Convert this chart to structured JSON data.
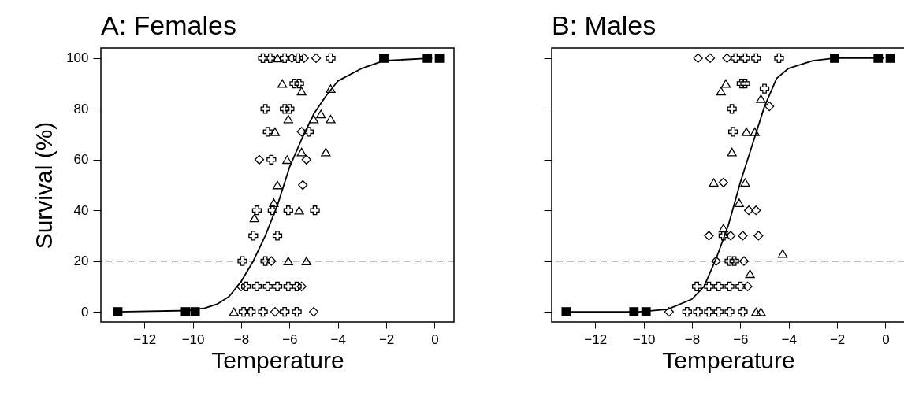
{
  "chart_data": [
    {
      "type": "scatter",
      "title": "A: Females",
      "xlabel": "Temperature",
      "ylabel": "Survival (%)",
      "xlim": [
        -13.8,
        0.8
      ],
      "ylim": [
        -4,
        104
      ],
      "xticks": [
        -12,
        -10,
        -8,
        -6,
        -4,
        -2,
        0
      ],
      "yticks": [
        0,
        20,
        40,
        60,
        80,
        100
      ],
      "grid": false,
      "ref_lines": [
        {
          "axis": "y",
          "value": 20,
          "line_style": "dashed",
          "color": "#000000"
        }
      ],
      "series": [
        {
          "type": "scatter",
          "marker": "square",
          "color": "#000000",
          "x": [
            -13.1,
            -10.3,
            -9.9,
            -2.1,
            -0.3,
            0.2
          ],
          "values": [
            0,
            0,
            0,
            100,
            100,
            100
          ]
        },
        {
          "type": "scatter",
          "marker": "cross",
          "color": "#000000",
          "x": [
            -7.1,
            -6.8,
            -6.2,
            -5.65,
            -4.3,
            -5.8,
            -5.6,
            -7.0,
            -6.2,
            -6.0,
            -6.9,
            -5.2,
            -6.75,
            -7.35,
            -6.7,
            -6.05,
            -4.95,
            -7.5,
            -6.5,
            -7.95,
            -7.0,
            -7.8,
            -7.35,
            -6.9,
            -6.5,
            -6.05,
            -5.7,
            -7.9,
            -7.6,
            -7.1,
            -6.2,
            -5.7
          ],
          "values": [
            100,
            100,
            100,
            100,
            100,
            90,
            90,
            80,
            80,
            80,
            71,
            71,
            60,
            40,
            40,
            40,
            40,
            30,
            30,
            20,
            20,
            10,
            10,
            10,
            10,
            10,
            10,
            0,
            0,
            0,
            0,
            0
          ]
        },
        {
          "type": "scatter",
          "marker": "diamond",
          "color": "#000000",
          "x": [
            -5.9,
            -5.4,
            -4.9,
            -5.5,
            -7.25,
            -5.3,
            -5.45,
            -6.75,
            -8.0,
            -5.5,
            -6.6,
            -5.0
          ],
          "values": [
            100,
            100,
            100,
            71,
            60,
            60,
            50,
            20,
            10,
            10,
            0,
            0
          ]
        },
        {
          "type": "scatter",
          "marker": "triangle",
          "color": "#000000",
          "x": [
            -6.5,
            -6.3,
            -5.5,
            -4.3,
            -4.7,
            -6.05,
            -5.0,
            -4.3,
            -6.6,
            -4.5,
            -5.5,
            -6.1,
            -6.5,
            -6.65,
            -5.6,
            -7.45,
            -6.05,
            -5.3,
            -8.3
          ],
          "values": [
            100,
            90,
            87,
            88,
            78,
            76,
            76,
            76,
            71,
            63,
            63,
            60,
            50,
            43,
            40,
            37,
            20,
            20,
            0
          ]
        },
        {
          "type": "line",
          "color": "#000000",
          "line_style": "solid",
          "x": [
            -13.1,
            -10.2,
            -9.5,
            -9,
            -8.5,
            -8,
            -7.5,
            -7,
            -6.5,
            -6,
            -5.5,
            -5,
            -4.5,
            -4,
            -3,
            -2.1,
            -0.1
          ],
          "values": [
            0,
            0.5,
            1.5,
            3,
            6,
            12,
            20,
            30,
            42,
            57,
            68,
            78,
            85,
            91,
            96,
            99,
            100
          ]
        }
      ]
    },
    {
      "type": "scatter",
      "title": "B: Males",
      "xlabel": "Temperature",
      "xlim": [
        -13.8,
        0.8
      ],
      "ylim": [
        -4,
        104
      ],
      "xticks": [
        -12,
        -10,
        -8,
        -6,
        -4,
        -2,
        0
      ],
      "yticks": [
        0,
        20,
        40,
        60,
        80,
        100
      ],
      "tick_labels": "x",
      "grid": false,
      "ref_lines": [
        {
          "axis": "y",
          "value": 20,
          "line_style": "dashed",
          "color": "#000000"
        }
      ],
      "series": [
        {
          "type": "scatter",
          "marker": "square",
          "color": "#000000",
          "x": [
            -13.2,
            -10.4,
            -9.9,
            -2.1,
            -0.3,
            0.2
          ],
          "values": [
            0,
            0,
            0,
            100,
            100,
            100
          ]
        },
        {
          "type": "scatter",
          "marker": "cross",
          "color": "#000000",
          "x": [
            -6.2,
            -5.8,
            -5.35,
            -4.4,
            -5.95,
            -5.8,
            -5.0,
            -6.35,
            -6.3,
            -6.7,
            -6.45,
            -6.25,
            -7.8,
            -7.3,
            -6.9,
            -6.45,
            -6.0,
            -8.2,
            -7.75,
            -7.3,
            -6.9,
            -6.45,
            -5.9
          ],
          "values": [
            100,
            100,
            100,
            100,
            90,
            90,
            88,
            80,
            71,
            30,
            20,
            20,
            10,
            10,
            10,
            10,
            10,
            0,
            0,
            0,
            0,
            0,
            0
          ]
        },
        {
          "type": "scatter",
          "marker": "diamond",
          "color": "#000000",
          "x": [
            -7.75,
            -7.25,
            -6.55,
            -4.8,
            -6.7,
            -5.65,
            -5.35,
            -7.3,
            -6.4,
            -5.9,
            -5.25,
            -7.0,
            -5.85,
            -5.7,
            -8.95
          ],
          "values": [
            100,
            100,
            100,
            81,
            51,
            40,
            40,
            30,
            30,
            30,
            30,
            20,
            20,
            10,
            0
          ]
        },
        {
          "type": "scatter",
          "marker": "triangle",
          "color": "#000000",
          "x": [
            -6.6,
            -6.8,
            -5.15,
            -5.75,
            -5.4,
            -6.35,
            -7.1,
            -5.8,
            -6.05,
            -6.7,
            -4.25,
            -5.6,
            -5.35,
            -5.15
          ],
          "values": [
            90,
            87,
            84,
            71,
            71,
            63,
            51,
            51,
            43,
            33,
            23,
            15,
            0,
            0
          ]
        },
        {
          "type": "line",
          "color": "#000000",
          "line_style": "solid",
          "x": [
            -13.2,
            -10.2,
            -9,
            -8,
            -7.5,
            -7,
            -6.5,
            -6,
            -5.5,
            -5,
            -4.5,
            -4,
            -3,
            -2.1,
            -0.05
          ],
          "values": [
            0,
            0,
            1,
            5,
            10,
            21,
            34,
            51,
            66,
            81,
            92,
            96,
            99,
            100,
            100
          ]
        }
      ]
    }
  ]
}
